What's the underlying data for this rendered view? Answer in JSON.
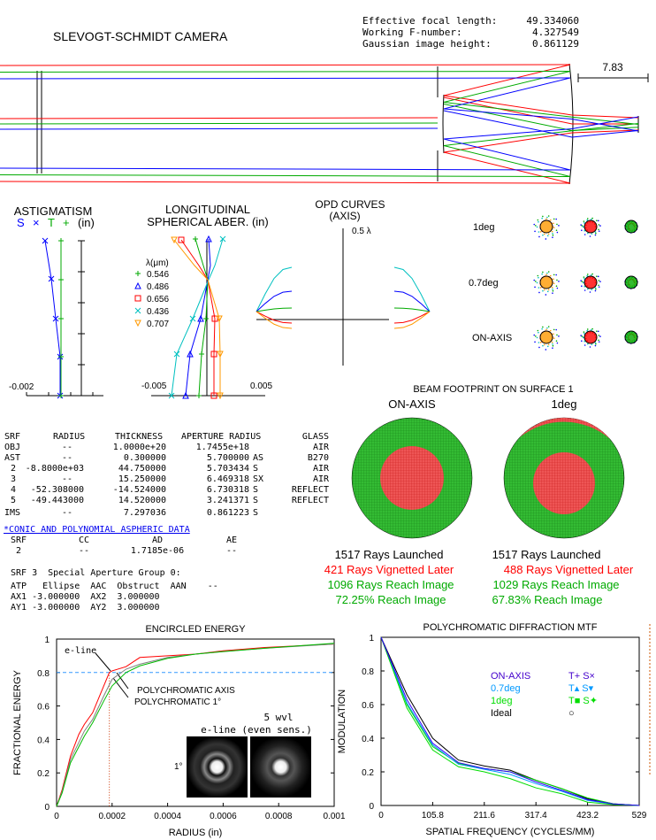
{
  "title": "SLEVOGT-SCHMIDT CAMERA",
  "specs": [
    {
      "label": "Effective focal length:",
      "value": "49.334060"
    },
    {
      "label": "Working F-number:",
      "value": "4.327549"
    },
    {
      "label": "Gaussian image height:",
      "value": "0.861129"
    }
  ],
  "layout_scale_label": "7.83",
  "colors": {
    "red": "#ff0000",
    "green": "#00aa00",
    "blue": "#0000ff",
    "cyan": "#00c0c0",
    "orange": "#ff9900"
  },
  "astigmatism": {
    "title": "ASTIGMATISM",
    "legend_s": "S",
    "legend_s_mark": "×",
    "legend_t": "T",
    "legend_t_mark": "+",
    "unit": "(in)",
    "xtick": "-0.002"
  },
  "spherical": {
    "title1": "LONGITUDINAL",
    "title2": "SPHERICAL ABER. (in)",
    "lambda_label": "λ(μm)",
    "wavelengths": [
      "0.546",
      "0.486",
      "0.656",
      "0.436",
      "0.707"
    ],
    "xtick_left": "-0.005",
    "xtick_right": "0.005"
  },
  "opd": {
    "title1": "OPD CURVES",
    "title2": "(AXIS)",
    "scale": "0.5 λ"
  },
  "spot": {
    "rows": [
      "1deg",
      "0.7deg",
      "ON-AXIS"
    ]
  },
  "footprint": {
    "title": "BEAM FOOTPRINT ON SURFACE 1",
    "panels": [
      {
        "label": "ON-AXIS",
        "launched": "1517 Rays Launched",
        "vignetted": "421 Rays Vignetted Later",
        "reach": "1096 Rays Reach Image",
        "pct": "72.25% Reach Image"
      },
      {
        "label": "1deg",
        "launched": "1517 Rays Launched",
        "vignetted": "488 Rays Vignetted Later",
        "reach": "1029 Rays Reach Image",
        "pct": "67.83% Reach Image"
      }
    ]
  },
  "lens_table": {
    "headers": [
      "SRF",
      "RADIUS",
      "THICKNESS",
      "APERTURE RADIUS",
      "GLASS"
    ],
    "rows": [
      [
        "OBJ",
        "--",
        "1.0000e+20",
        "1.7455e+18",
        "AIR"
      ],
      [
        "AST",
        "--",
        "0.300000",
        "5.700000 AS",
        "B270"
      ],
      [
        "2",
        "-8.8000e+03",
        "44.750000",
        "5.703434 S",
        "AIR"
      ],
      [
        "3",
        "--",
        "15.250000",
        "6.469318 SX",
        "AIR"
      ],
      [
        "4",
        "-52.308000",
        "-14.524000",
        "6.730318 S",
        "REFLECT"
      ],
      [
        "5",
        "-49.443000",
        "14.520000",
        "3.241371 S",
        "REFLECT"
      ],
      [
        "IMS",
        "--",
        "7.297036",
        "0.861223 S",
        ""
      ]
    ]
  },
  "asphere": {
    "link": "*CONIC AND POLYNOMIAL ASPHERIC DATA",
    "headers": [
      "SRF",
      "CC",
      "AD",
      "AE"
    ],
    "row": [
      "2",
      "--",
      "1.7185e-06",
      "--"
    ]
  },
  "aperture": {
    "title": "SRF 3  Special Aperture Group 0:",
    "lines": [
      "ATP   Ellipse  AAC  Obstruct  AAN    --",
      "AX1 -3.000000  AX2  3.000000",
      "AY1 -3.000000  AY2  3.000000"
    ]
  },
  "chart_data": [
    {
      "type": "line",
      "title": "ENCIRCLED ENERGY",
      "xlabel": "RADIUS (in)",
      "ylabel": "FRACTIONAL ENERGY",
      "xlim": [
        0,
        0.001
      ],
      "ylim": [
        0,
        1
      ],
      "xticks": [
        "0",
        "0.0002",
        "0.0004",
        "0.0006",
        "0.0008",
        "0.001"
      ],
      "yticks": [
        "0",
        "0.2",
        "0.4",
        "0.6",
        "0.8",
        "1"
      ],
      "reference_y": 0.8,
      "reference_x": 0.00019,
      "annotations": [
        "e-line",
        "POLYCHROMATIC AXIS",
        "POLYCHROMATIC 1°"
      ],
      "inset_title1": "5 wvl",
      "inset_title2": "e-line (even sens.)",
      "inset_label": "1°",
      "series": [
        {
          "name": "e-line",
          "color": "#ff0000",
          "x": [
            0,
            2e-05,
            5e-05,
            8e-05,
            0.0001,
            0.00013,
            0.00016,
            0.00019,
            0.0002,
            0.00025,
            0.0003,
            0.0004,
            0.0005,
            0.0006,
            0.00075,
            0.001
          ],
          "y": [
            0,
            0.1,
            0.3,
            0.43,
            0.49,
            0.56,
            0.68,
            0.8,
            0.81,
            0.835,
            0.89,
            0.9,
            0.91,
            0.93,
            0.95,
            0.97
          ]
        },
        {
          "name": "POLYCHROMATIC AXIS",
          "color": "#808080",
          "x": [
            0,
            2e-05,
            5e-05,
            0.0001,
            0.00013,
            0.00017,
            0.0002,
            0.00025,
            0.0003,
            0.0004,
            0.0005,
            0.0006,
            0.00075,
            0.001
          ],
          "y": [
            0,
            0.09,
            0.28,
            0.45,
            0.52,
            0.66,
            0.76,
            0.82,
            0.85,
            0.89,
            0.91,
            0.925,
            0.945,
            0.97
          ]
        },
        {
          "name": "POLYCHROMATIC 1°",
          "color": "#00bb00",
          "x": [
            0,
            2e-05,
            5e-05,
            0.0001,
            0.00013,
            0.00017,
            0.0002,
            0.00025,
            0.0003,
            0.0004,
            0.0005,
            0.0006,
            0.00075,
            0.001
          ],
          "y": [
            0,
            0.08,
            0.26,
            0.42,
            0.5,
            0.63,
            0.72,
            0.8,
            0.84,
            0.885,
            0.91,
            0.925,
            0.945,
            0.975
          ]
        }
      ]
    },
    {
      "type": "line",
      "title": "POLYCHROMATIC DIFFRACTION MTF",
      "xlabel": "SPATIAL FREQUENCY (CYCLES/MM)",
      "ylabel": "MODULATION",
      "xlim": [
        0,
        529
      ],
      "ylim": [
        0,
        1
      ],
      "xticks": [
        "0",
        "105.8",
        "211.6",
        "317.4",
        "423.2",
        "529"
      ],
      "yticks": [
        "0",
        "0.2",
        "0.4",
        "0.6",
        "0.8",
        "1"
      ],
      "legend": [
        {
          "label": "ON-AXIS",
          "marks": "T+  S×",
          "color": "#4400cc"
        },
        {
          "label": "0.7deg",
          "marks": "T▴  S▾",
          "color": "#0099ff"
        },
        {
          "label": "1deg",
          "marks": "T■  S✦",
          "color": "#00dd00"
        },
        {
          "label": "Ideal",
          "marks": "○",
          "color": "#000000"
        }
      ],
      "x": [
        0,
        52.9,
        105.8,
        158.7,
        211.6,
        264.5,
        317.4,
        370.3,
        423.2,
        476.1,
        529
      ],
      "series": [
        {
          "name": "Ideal",
          "color": "#000000",
          "y": [
            1,
            0.66,
            0.4,
            0.27,
            0.235,
            0.21,
            0.15,
            0.1,
            0.04,
            0.01,
            0
          ]
        },
        {
          "name": "1deg",
          "color": "#00dd00",
          "y": [
            1,
            0.6,
            0.35,
            0.25,
            0.22,
            0.2,
            0.15,
            0.1,
            0.045,
            0.01,
            0
          ]
        },
        {
          "name": "0.7deg",
          "color": "#0099ff",
          "y": [
            1,
            0.61,
            0.36,
            0.245,
            0.215,
            0.185,
            0.13,
            0.085,
            0.03,
            0.008,
            0
          ]
        },
        {
          "name": "1deg",
          "color": "#00dd00",
          "y": [
            1,
            0.58,
            0.33,
            0.23,
            0.2,
            0.16,
            0.105,
            0.07,
            0.02,
            0.005,
            0
          ]
        },
        {
          "name": "ON-AXIS",
          "color": "#3300ff",
          "y": [
            1,
            0.63,
            0.37,
            0.255,
            0.22,
            0.2,
            0.14,
            0.09,
            0.035,
            0.009,
            0
          ]
        }
      ]
    }
  ]
}
